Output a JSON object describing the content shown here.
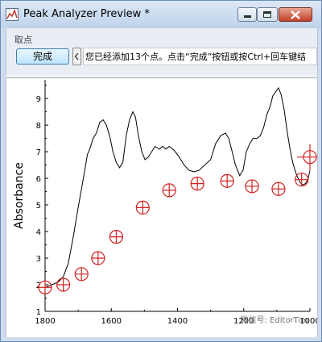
{
  "window": {
    "title": "Peak Analyzer Preview *"
  },
  "toolbar": {
    "group_label": "取点",
    "done_label": "完成",
    "hint_text": "您已经添加13个点。点击“完成”按钮或按Ctrl+回车键结"
  },
  "watermark": "微信号: EditorTim",
  "chart_data": {
    "type": "line",
    "xlabel": "",
    "ylabel": "Absorbance",
    "xlim": [
      1800,
      1000
    ],
    "ylim": [
      1,
      9.7
    ],
    "x_ticks": [
      1800,
      1600,
      1400,
      1200,
      1000
    ],
    "y_ticks": [
      1,
      2,
      3,
      4,
      5,
      6,
      7,
      8,
      9
    ],
    "grid": false,
    "series": [
      {
        "color": "#000000",
        "points": [
          [
            1800,
            1.9
          ],
          [
            1780,
            2.0
          ],
          [
            1760,
            2.1
          ],
          [
            1745,
            2.3
          ],
          [
            1730,
            2.8
          ],
          [
            1715,
            3.8
          ],
          [
            1700,
            4.9
          ],
          [
            1690,
            5.6
          ],
          [
            1680,
            6.3
          ],
          [
            1672,
            6.9
          ],
          [
            1665,
            7.1
          ],
          [
            1655,
            7.5
          ],
          [
            1645,
            7.7
          ],
          [
            1635,
            8.1
          ],
          [
            1625,
            8.2
          ],
          [
            1615,
            8.0
          ],
          [
            1605,
            7.6
          ],
          [
            1595,
            7.0
          ],
          [
            1585,
            6.6
          ],
          [
            1575,
            6.4
          ],
          [
            1565,
            6.6
          ],
          [
            1555,
            7.6
          ],
          [
            1545,
            8.2
          ],
          [
            1535,
            8.5
          ],
          [
            1527,
            8.3
          ],
          [
            1518,
            7.6
          ],
          [
            1508,
            7.0
          ],
          [
            1498,
            6.7
          ],
          [
            1488,
            6.8
          ],
          [
            1478,
            7.0
          ],
          [
            1468,
            7.2
          ],
          [
            1455,
            7.1
          ],
          [
            1445,
            7.2
          ],
          [
            1435,
            7.1
          ],
          [
            1425,
            7.2
          ],
          [
            1410,
            7.05
          ],
          [
            1395,
            6.8
          ],
          [
            1380,
            6.5
          ],
          [
            1365,
            6.3
          ],
          [
            1350,
            6.25
          ],
          [
            1335,
            6.3
          ],
          [
            1318,
            6.5
          ],
          [
            1300,
            6.7
          ],
          [
            1285,
            7.3
          ],
          [
            1270,
            7.6
          ],
          [
            1255,
            7.7
          ],
          [
            1245,
            7.5
          ],
          [
            1235,
            7.0
          ],
          [
            1225,
            6.5
          ],
          [
            1212,
            6.1
          ],
          [
            1202,
            6.3
          ],
          [
            1192,
            7.0
          ],
          [
            1182,
            7.3
          ],
          [
            1172,
            7.5
          ],
          [
            1160,
            7.5
          ],
          [
            1150,
            7.6
          ],
          [
            1140,
            7.9
          ],
          [
            1130,
            8.4
          ],
          [
            1120,
            8.7
          ],
          [
            1112,
            9.1
          ],
          [
            1103,
            9.25
          ],
          [
            1095,
            9.4
          ],
          [
            1087,
            9.15
          ],
          [
            1078,
            8.6
          ],
          [
            1068,
            7.7
          ],
          [
            1060,
            7.1
          ],
          [
            1052,
            6.6
          ],
          [
            1045,
            6.3
          ],
          [
            1038,
            6.05
          ],
          [
            1030,
            5.85
          ],
          [
            1022,
            5.75
          ],
          [
            1014,
            5.8
          ],
          [
            1006,
            5.95
          ],
          [
            1000,
            6.3
          ]
        ]
      }
    ],
    "markers": [
      [
        1800,
        1.9
      ],
      [
        1745,
        2.0
      ],
      [
        1690,
        2.4
      ],
      [
        1640,
        3.0
      ],
      [
        1585,
        3.8
      ],
      [
        1505,
        4.9
      ],
      [
        1425,
        5.55
      ],
      [
        1340,
        5.8
      ],
      [
        1250,
        5.9
      ],
      [
        1175,
        5.7
      ],
      [
        1095,
        5.6
      ],
      [
        1025,
        5.95
      ],
      [
        1000,
        6.8
      ]
    ],
    "marker_color": "#d42020"
  }
}
